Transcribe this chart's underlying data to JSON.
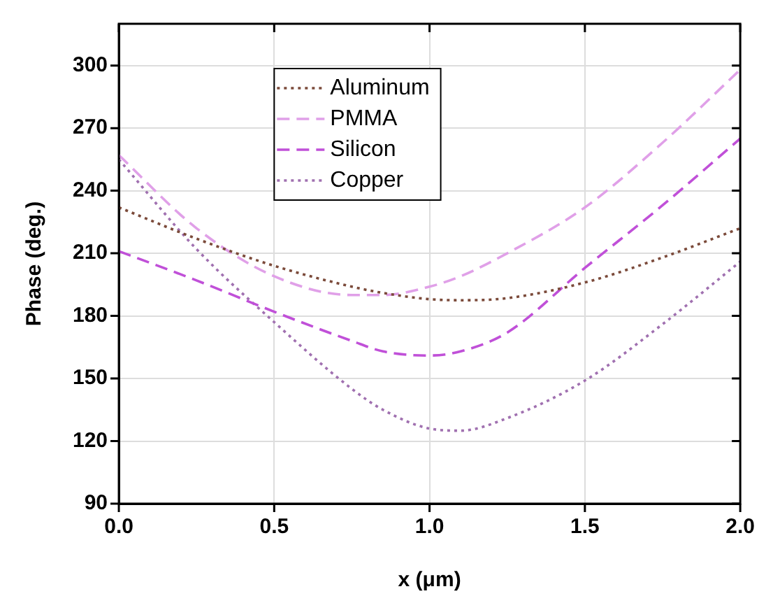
{
  "chart_data": {
    "type": "line",
    "xlabel": "x (μm)",
    "ylabel": "Phase (deg.)",
    "x": [
      0,
      0.25,
      0.5,
      0.75,
      0.85,
      1.0,
      1.1,
      1.25,
      1.5,
      1.75,
      2.0
    ],
    "xlim": [
      0,
      2.0
    ],
    "xticks": [
      {
        "value": 0,
        "label": "0.0"
      },
      0.5,
      {
        "value": 1,
        "label": "1.0"
      },
      1.5,
      {
        "value": 2,
        "label": "2.0"
      }
    ],
    "ylim": [
      90,
      320
    ],
    "yticks": [
      90,
      120,
      150,
      180,
      210,
      240,
      270,
      300
    ],
    "grid": true,
    "legend": "top left",
    "marker": "none",
    "series": [
      {
        "name": "Aluminum",
        "color": "#7b4a3a",
        "line_style": "dotted",
        "values": [
          232,
          217,
          204,
          194,
          191,
          188,
          187.5,
          188.5,
          196,
          208,
          222
        ]
      },
      {
        "name": "PMMA",
        "color": "#e0a0e8",
        "line_style": "dashed",
        "values": [
          257,
          222,
          199,
          190,
          190,
          194,
          199,
          210,
          232,
          263,
          298
        ]
      },
      {
        "name": "Silicon",
        "color": "#c050d8",
        "line_style": "dashed",
        "values": [
          211,
          197,
          182,
          168,
          163,
          161,
          163,
          172,
          203,
          233,
          265
        ]
      },
      {
        "name": "Copper",
        "color": "#a070b0",
        "line_style": "dotted",
        "values": [
          255,
          212,
          177,
          145,
          135,
          126,
          125,
          131,
          149,
          176,
          206
        ]
      }
    ]
  }
}
